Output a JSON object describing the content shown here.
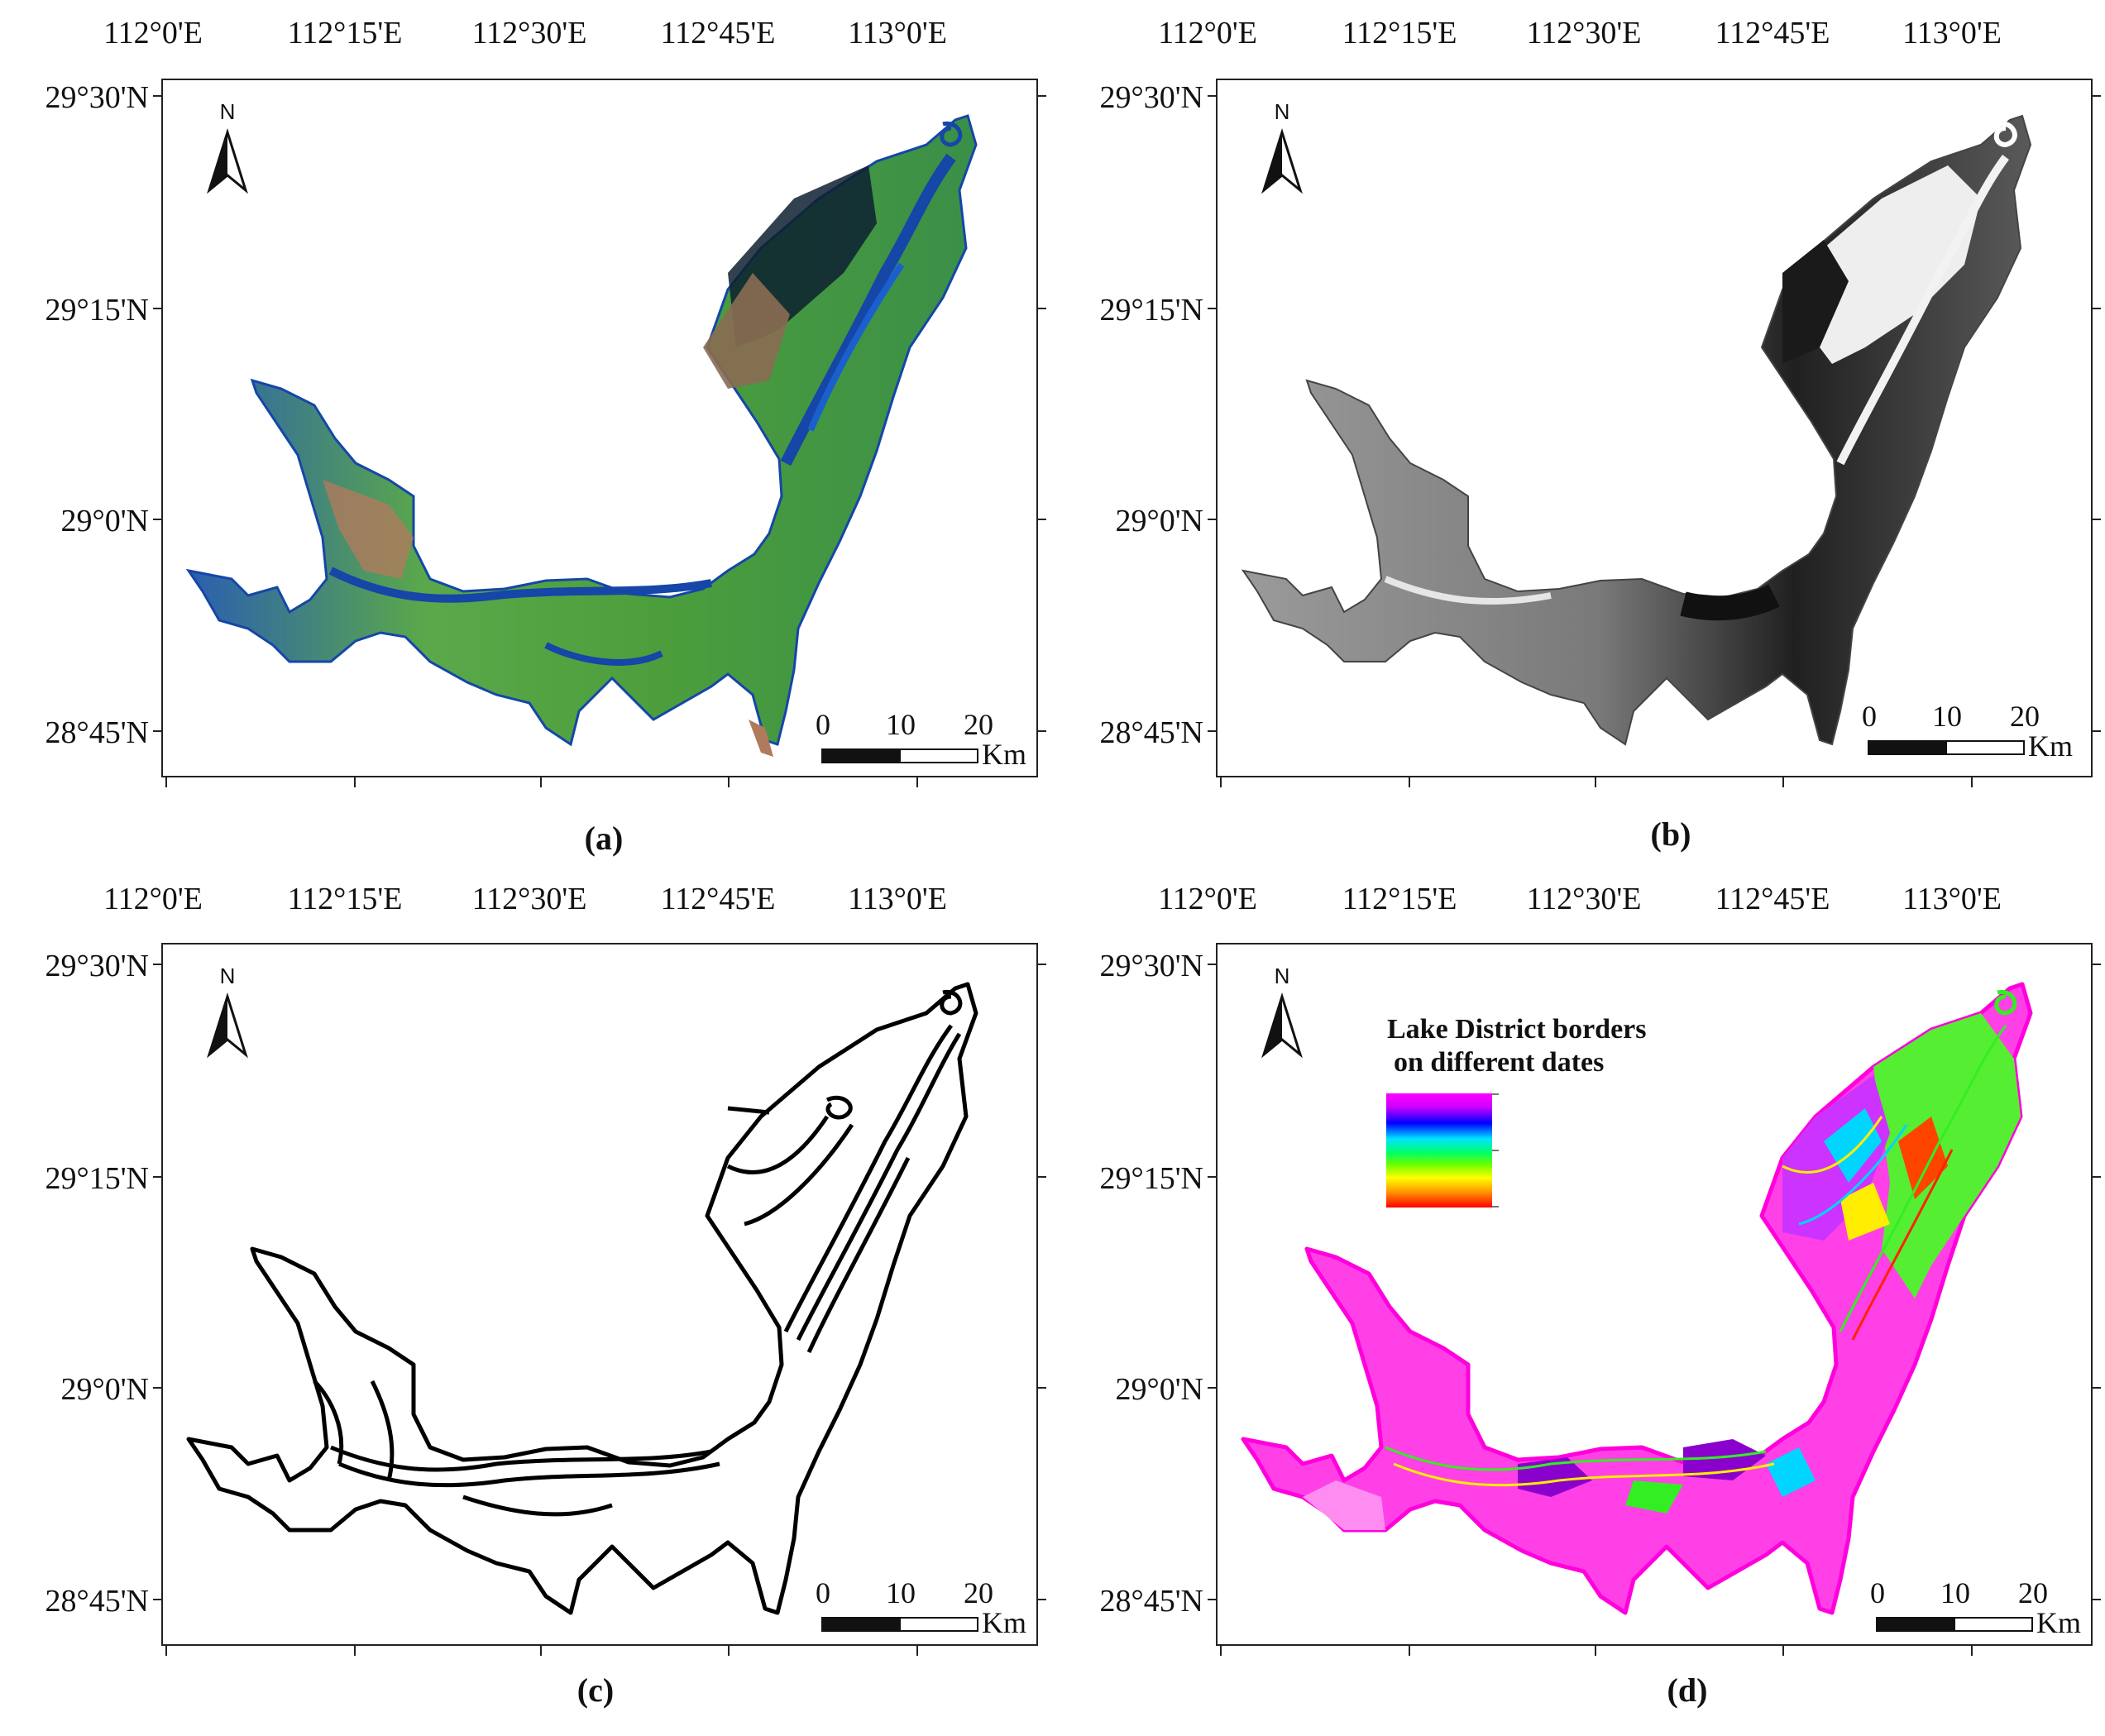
{
  "figure": {
    "panels": [
      {
        "id": "a",
        "caption": "(a)",
        "style": "false-color composite"
      },
      {
        "id": "b",
        "caption": "(b)",
        "style": "grayscale"
      },
      {
        "id": "c",
        "caption": "(c)",
        "style": "black outline"
      },
      {
        "id": "d",
        "caption": "(d)",
        "style": "multicolor outline",
        "legend": {
          "title_line1": "Lake District borders",
          "title_line2": "on different dates"
        }
      }
    ],
    "longitude_ticks": [
      "112°0'E",
      "112°15'E",
      "112°30'E",
      "112°45'E",
      "113°0'E"
    ],
    "latitude_ticks": [
      "29°30'N",
      "29°15'N",
      "29°0'N",
      "28°45'N"
    ],
    "north_arrow": {
      "label": "N",
      "icon": "north-arrow-icon"
    },
    "scale_bar": {
      "labels": [
        "0",
        "10",
        "20"
      ],
      "unit": "Km"
    },
    "colors": {
      "frame": "#222222",
      "panel_a": {
        "water": "#1546a8",
        "vegetation": "#3fa84c",
        "bare": "#b07a5c",
        "dark": "#0d2030"
      },
      "panel_b": {
        "light": "#eeeeee",
        "mid": "#8a8a8a",
        "dark": "#1a1a1a"
      },
      "panel_c": {
        "line": "#000000"
      },
      "panel_d": {
        "magenta": "#ff00dd",
        "green": "#33ee22",
        "cyan": "#00d5ff",
        "yellow": "#ffee00",
        "red": "#ff2200",
        "purple": "#8a00cc"
      }
    }
  }
}
